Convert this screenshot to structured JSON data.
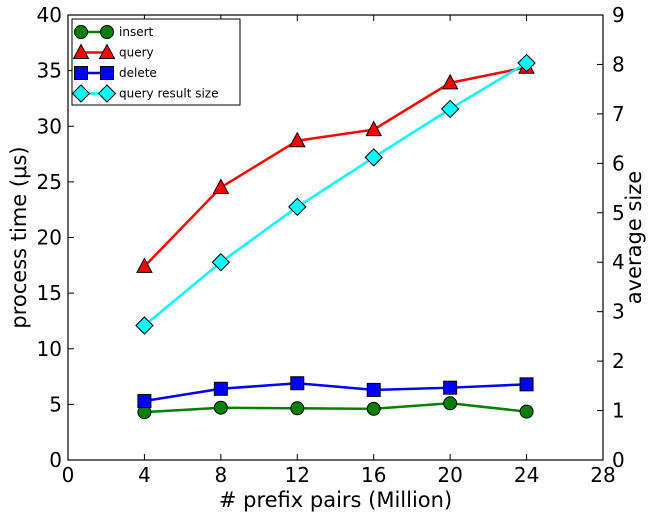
{
  "chart_data": {
    "type": "line",
    "title": "",
    "xlabel": "# prefix pairs (Million)",
    "ylabel": "process time (μs)",
    "ylabel_right": "average size",
    "xlim": [
      0,
      28
    ],
    "ylim": [
      0,
      40
    ],
    "ylim_right": [
      0,
      9
    ],
    "xticks": [
      0,
      4,
      8,
      12,
      16,
      20,
      24,
      28
    ],
    "yticks": [
      0,
      5,
      10,
      15,
      20,
      25,
      30,
      35,
      40
    ],
    "yticks_right": [
      0,
      1,
      2,
      3,
      4,
      5,
      6,
      7,
      8,
      9
    ],
    "grid": false,
    "legend_position": "top-left",
    "x": [
      4,
      8,
      12,
      16,
      20,
      24
    ],
    "series": [
      {
        "name": "insert",
        "axis": "left",
        "marker": "circle",
        "color": "#008000",
        "values": [
          4.3,
          4.7,
          4.65,
          4.6,
          5.1,
          4.35
        ]
      },
      {
        "name": "query",
        "axis": "left",
        "marker": "triangle",
        "color": "#ff0000",
        "values": [
          17.4,
          24.5,
          28.7,
          29.7,
          33.9,
          35.3
        ]
      },
      {
        "name": "delete",
        "axis": "left",
        "marker": "square",
        "color": "#0000ff",
        "values": [
          5.3,
          6.4,
          6.9,
          6.3,
          6.5,
          6.8
        ]
      },
      {
        "name": "query result size",
        "axis": "right",
        "marker": "diamond",
        "color": "#00ffff",
        "values": [
          2.72,
          4.0,
          5.12,
          6.12,
          7.1,
          8.03
        ]
      }
    ]
  }
}
